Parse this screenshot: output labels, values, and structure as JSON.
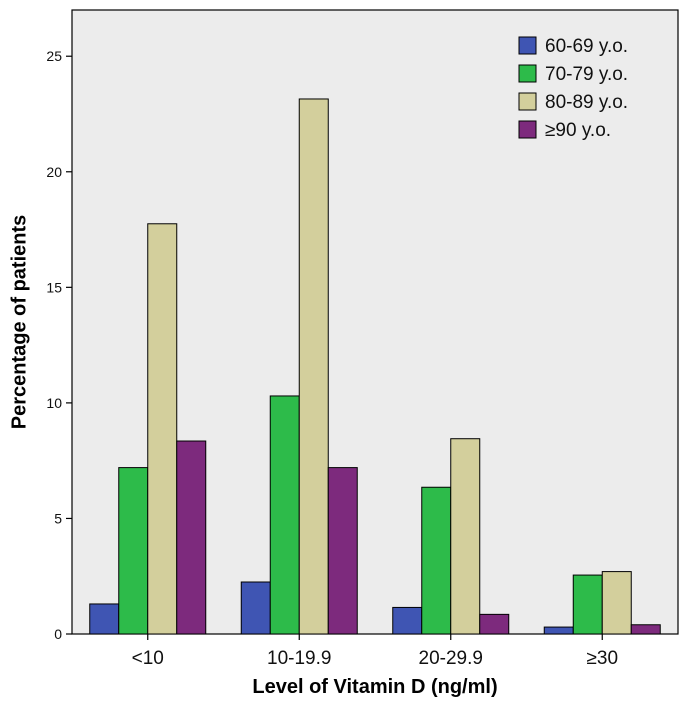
{
  "chart_data": {
    "type": "bar",
    "title": "",
    "xlabel": "Level of Vitamin D (ng/ml)",
    "ylabel": "Percentage of patients",
    "ylim": [
      0,
      27
    ],
    "yticks": [
      0,
      5,
      10,
      15,
      20,
      25
    ],
    "grid": false,
    "legend_position": "top-right",
    "categories": [
      "<10",
      "10-19.9",
      "20-29.9",
      "≥30"
    ],
    "series": [
      {
        "name": "60-69 y.o.",
        "color": "#3f55b3",
        "values": [
          1.3,
          2.25,
          1.15,
          0.3
        ]
      },
      {
        "name": "70-79 y.o.",
        "color": "#2dbb4a",
        "values": [
          7.2,
          10.3,
          6.35,
          2.55
        ]
      },
      {
        "name": "80-89 y.o.",
        "color": "#d3cf9c",
        "values": [
          17.75,
          23.15,
          8.45,
          2.7
        ]
      },
      {
        "name": "≥90 y.o.",
        "color": "#7d2a7d",
        "values": [
          8.35,
          7.2,
          0.85,
          0.4
        ]
      }
    ],
    "plot_background": "#ececec"
  }
}
